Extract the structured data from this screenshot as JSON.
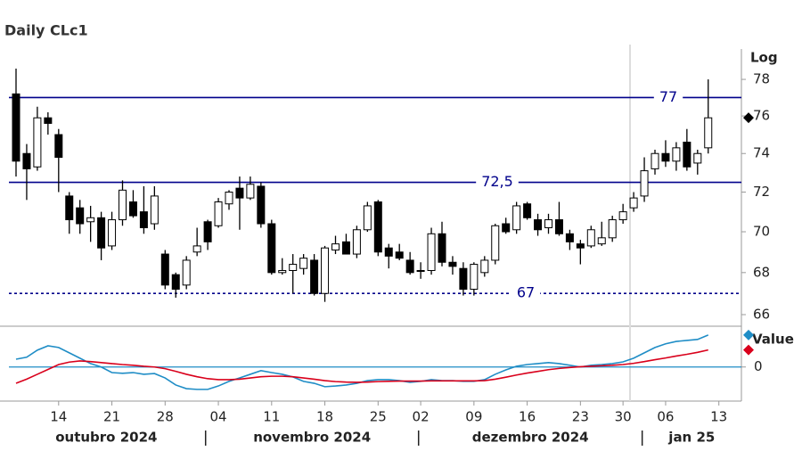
{
  "chart_data": [
    {
      "type": "candlestick",
      "title": "Daily CLc1",
      "yaxis_label": "Log",
      "log_scale": true,
      "ylim": [
        65.5,
        79.7
      ],
      "yticks": [
        66,
        68,
        70,
        72,
        74,
        76,
        78
      ],
      "x": [
        "2024-10-08",
        "2024-10-09",
        "2024-10-10",
        "2024-10-11",
        "2024-10-14",
        "2024-10-15",
        "2024-10-16",
        "2024-10-17",
        "2024-10-18",
        "2024-10-21",
        "2024-10-22",
        "2024-10-23",
        "2024-10-24",
        "2024-10-25",
        "2024-10-28",
        "2024-10-29",
        "2024-10-30",
        "2024-10-31",
        "2024-11-01",
        "2024-11-04",
        "2024-11-05",
        "2024-11-06",
        "2024-11-07",
        "2024-11-08",
        "2024-11-11",
        "2024-11-12",
        "2024-11-13",
        "2024-11-14",
        "2024-11-15",
        "2024-11-18",
        "2024-11-19",
        "2024-11-20",
        "2024-11-21",
        "2024-11-22",
        "2024-11-25",
        "2024-11-26",
        "2024-11-27",
        "2024-11-29",
        "2024-12-02",
        "2024-12-03",
        "2024-12-04",
        "2024-12-05",
        "2024-12-06",
        "2024-12-09",
        "2024-12-10",
        "2024-12-11",
        "2024-12-12",
        "2024-12-13",
        "2024-12-16",
        "2024-12-17",
        "2024-12-18",
        "2024-12-19",
        "2024-12-20",
        "2024-12-23",
        "2024-12-24",
        "2024-12-26",
        "2024-12-27",
        "2024-12-30",
        "2024-12-31",
        "2025-01-02",
        "2025-01-03",
        "2025-01-06",
        "2025-01-07",
        "2025-01-08",
        "2025-01-09",
        "2025-01-10"
      ],
      "open": [
        77.2,
        74.0,
        73.3,
        75.9,
        75.0,
        71.8,
        71.2,
        70.5,
        70.7,
        69.3,
        70.6,
        71.5,
        71.0,
        70.4,
        68.9,
        67.9,
        67.4,
        69.0,
        70.5,
        70.3,
        71.4,
        72.2,
        71.7,
        72.3,
        70.4,
        68.0,
        68.1,
        68.2,
        68.6,
        67.0,
        69.1,
        69.5,
        68.9,
        70.1,
        71.5,
        69.2,
        69.0,
        68.6,
        68.1,
        68.1,
        69.9,
        68.5,
        68.2,
        67.2,
        68.0,
        68.6,
        70.4,
        70.1,
        71.4,
        70.6,
        70.2,
        70.6,
        69.9,
        69.4,
        69.3,
        69.4,
        69.7,
        70.6,
        71.2,
        71.8,
        73.2,
        74.0,
        73.6,
        74.6,
        73.5,
        74.3
      ],
      "high": [
        78.6,
        74.5,
        76.5,
        76.2,
        75.3,
        72.0,
        71.6,
        71.3,
        71.0,
        71.0,
        72.6,
        72.1,
        72.3,
        72.3,
        69.1,
        68.0,
        68.8,
        70.2,
        70.6,
        71.7,
        72.1,
        72.8,
        72.8,
        72.5,
        70.6,
        68.7,
        68.9,
        68.9,
        68.9,
        69.3,
        69.8,
        69.9,
        70.3,
        71.5,
        71.6,
        69.4,
        69.4,
        69.0,
        68.5,
        70.2,
        70.5,
        68.8,
        68.5,
        68.5,
        68.8,
        70.4,
        70.7,
        71.5,
        71.5,
        70.9,
        70.9,
        71.5,
        70.1,
        69.6,
        70.3,
        70.5,
        70.8,
        71.4,
        72.0,
        73.8,
        74.2,
        74.7,
        74.6,
        75.3,
        74.2,
        78.0
      ],
      "low": [
        72.8,
        71.6,
        73.1,
        75.0,
        72.0,
        69.9,
        69.9,
        69.5,
        68.6,
        69.1,
        70.3,
        70.7,
        69.9,
        70.1,
        67.2,
        66.8,
        67.2,
        68.8,
        69.1,
        70.2,
        71.1,
        70.1,
        71.6,
        70.2,
        67.9,
        67.9,
        67.0,
        67.9,
        66.9,
        66.6,
        68.9,
        68.9,
        68.7,
        70.0,
        68.8,
        68.2,
        68.6,
        67.9,
        67.7,
        67.9,
        68.3,
        67.9,
        66.9,
        66.9,
        67.8,
        68.4,
        69.9,
        69.9,
        70.6,
        69.8,
        69.9,
        69.8,
        69.1,
        68.4,
        69.2,
        69.3,
        69.5,
        70.4,
        71.0,
        71.5,
        72.9,
        73.3,
        73.1,
        73.1,
        72.9,
        74.0
      ],
      "close": [
        73.6,
        73.2,
        75.9,
        75.6,
        73.8,
        70.6,
        70.4,
        70.7,
        69.2,
        70.6,
        72.1,
        70.8,
        70.2,
        71.8,
        67.4,
        67.2,
        68.6,
        69.3,
        69.5,
        71.5,
        72.0,
        71.7,
        72.4,
        70.4,
        68.0,
        68.1,
        68.4,
        68.7,
        67.0,
        69.2,
        69.4,
        68.9,
        70.1,
        71.3,
        69.0,
        68.8,
        68.7,
        68.0,
        68.1,
        69.9,
        68.5,
        68.3,
        67.2,
        68.4,
        68.6,
        70.3,
        70.0,
        71.3,
        70.7,
        70.1,
        70.6,
        69.9,
        69.5,
        69.2,
        70.1,
        69.7,
        70.6,
        71.0,
        71.7,
        73.1,
        74.0,
        73.6,
        74.3,
        73.3,
        74.0,
        75.9
      ],
      "up_color": "#ffffff",
      "down_color": "#000000",
      "levels": [
        {
          "value": 77,
          "label": "77",
          "style": "solid"
        },
        {
          "value": 72.5,
          "label": "72,5",
          "style": "solid"
        },
        {
          "value": 67,
          "label": "67",
          "style": "dotted"
        }
      ],
      "level_color": "#00008b",
      "xticks": [
        {
          "value": "2024-10-14",
          "label": "14"
        },
        {
          "value": "2024-10-21",
          "label": "21"
        },
        {
          "value": "2024-10-28",
          "label": "28"
        },
        {
          "value": "2024-11-04",
          "label": "04"
        },
        {
          "value": "2024-11-11",
          "label": "11"
        },
        {
          "value": "2024-11-18",
          "label": "18"
        },
        {
          "value": "2024-11-25",
          "label": "25"
        },
        {
          "value": "2024-12-02",
          "label": "02"
        },
        {
          "value": "2024-12-09",
          "label": "09"
        },
        {
          "value": "2024-12-16",
          "label": "16"
        },
        {
          "value": "2024-12-23",
          "label": "23"
        },
        {
          "value": "2024-12-30",
          "label": "30"
        },
        {
          "value": "2025-01-06",
          "label": "06"
        },
        {
          "value": "2025-01-13",
          "label": "13"
        }
      ],
      "months": [
        {
          "label": "outubro 2024",
          "month": "2024-10"
        },
        {
          "label": "novembro 2024",
          "month": "2024-11"
        },
        {
          "label": "dezembro 2024",
          "month": "2024-12"
        },
        {
          "label": "jan 25",
          "month": "2025-01"
        }
      ]
    },
    {
      "type": "line",
      "ylabel": "Value",
      "ylim": [
        -1.4,
        1.6
      ],
      "yticks": [
        0
      ],
      "zero_color": "#1f8dc6",
      "series": [
        {
          "color": "#1f8dc6",
          "values": [
            0.32,
            0.4,
            0.69,
            0.87,
            0.8,
            0.58,
            0.36,
            0.14,
            0,
            -0.23,
            -0.26,
            -0.23,
            -0.3,
            -0.27,
            -0.45,
            -0.74,
            -0.89,
            -0.92,
            -0.92,
            -0.78,
            -0.59,
            -0.45,
            -0.3,
            -0.15,
            -0.23,
            -0.3,
            -0.41,
            -0.59,
            -0.67,
            -0.81,
            -0.78,
            -0.74,
            -0.67,
            -0.56,
            -0.52,
            -0.52,
            -0.56,
            -0.63,
            -0.59,
            -0.52,
            -0.56,
            -0.56,
            -0.59,
            -0.59,
            -0.52,
            -0.3,
            -0.12,
            0.03,
            0.1,
            0.14,
            0.18,
            0.14,
            0.07,
            0,
            0.07,
            0.1,
            0.14,
            0.21,
            0.36,
            0.58,
            0.8,
            0.95,
            1.05,
            1.09,
            1.13,
            1.31
          ]
        },
        {
          "color": "#d9001b",
          "values": [
            -0.67,
            -0.5,
            -0.3,
            -0.1,
            0.1,
            0.2,
            0.25,
            0.22,
            0.18,
            0.14,
            0.1,
            0.07,
            0.03,
            0,
            -0.07,
            -0.18,
            -0.3,
            -0.4,
            -0.48,
            -0.52,
            -0.52,
            -0.5,
            -0.45,
            -0.4,
            -0.38,
            -0.38,
            -0.4,
            -0.45,
            -0.5,
            -0.56,
            -0.6,
            -0.62,
            -0.63,
            -0.62,
            -0.6,
            -0.59,
            -0.58,
            -0.58,
            -0.58,
            -0.57,
            -0.57,
            -0.57,
            -0.57,
            -0.57,
            -0.56,
            -0.5,
            -0.42,
            -0.33,
            -0.25,
            -0.18,
            -0.11,
            -0.06,
            -0.02,
            0.01,
            0.03,
            0.05,
            0.07,
            0.1,
            0.15,
            0.22,
            0.3,
            0.37,
            0.45,
            0.52,
            0.6,
            0.7
          ]
        }
      ]
    }
  ]
}
